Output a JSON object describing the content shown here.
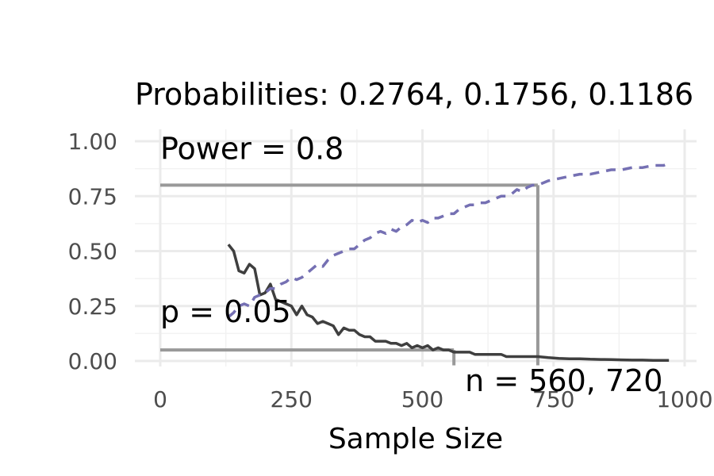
{
  "chart_data": {
    "type": "line",
    "title": "Probabilities: 0.2764, 0.1756, 0.1186",
    "xlabel": "Sample Size",
    "ylabel": "",
    "xlim": [
      0,
      1000
    ],
    "ylim": [
      0,
      1
    ],
    "x_ticks": [
      "0",
      "250",
      "500",
      "750",
      "1000"
    ],
    "y_ticks": [
      "0.00",
      "0.25",
      "0.50",
      "0.75",
      "1.00"
    ],
    "grid": true,
    "series": [
      {
        "color": "#3f3f3f",
        "style": "solid",
        "x": [
          130,
          140,
          150,
          160,
          170,
          180,
          190,
          200,
          210,
          220,
          230,
          240,
          250,
          260,
          270,
          280,
          290,
          300,
          310,
          320,
          330,
          340,
          350,
          360,
          370,
          380,
          390,
          400,
          410,
          420,
          430,
          440,
          450,
          460,
          470,
          480,
          490,
          500,
          510,
          520,
          530,
          540,
          550,
          560,
          570,
          580,
          590,
          600,
          610,
          620,
          630,
          640,
          650,
          660,
          670,
          680,
          690,
          700,
          710,
          720,
          740,
          760,
          780,
          800,
          820,
          840,
          860,
          880,
          900,
          920,
          940,
          960,
          970
        ],
        "values": [
          0.53,
          0.5,
          0.41,
          0.4,
          0.44,
          0.42,
          0.3,
          0.31,
          0.35,
          0.28,
          0.27,
          0.26,
          0.25,
          0.21,
          0.25,
          0.21,
          0.2,
          0.17,
          0.18,
          0.17,
          0.16,
          0.12,
          0.15,
          0.14,
          0.14,
          0.12,
          0.11,
          0.11,
          0.09,
          0.09,
          0.09,
          0.08,
          0.08,
          0.07,
          0.08,
          0.06,
          0.07,
          0.06,
          0.07,
          0.05,
          0.06,
          0.05,
          0.05,
          0.04,
          0.04,
          0.04,
          0.04,
          0.03,
          0.03,
          0.03,
          0.03,
          0.03,
          0.03,
          0.02,
          0.02,
          0.02,
          0.02,
          0.02,
          0.02,
          0.02,
          0.015,
          0.012,
          0.01,
          0.01,
          0.008,
          0.007,
          0.006,
          0.005,
          0.004,
          0.004,
          0.003,
          0.003,
          0.003
        ]
      },
      {
        "color": "#7570b3",
        "style": "dashed",
        "x": [
          130,
          140,
          150,
          160,
          170,
          180,
          190,
          200,
          210,
          220,
          230,
          240,
          250,
          260,
          270,
          280,
          290,
          300,
          310,
          320,
          330,
          340,
          350,
          360,
          370,
          380,
          390,
          400,
          410,
          420,
          430,
          440,
          450,
          460,
          470,
          480,
          490,
          500,
          510,
          520,
          530,
          540,
          550,
          560,
          570,
          580,
          590,
          600,
          610,
          620,
          630,
          640,
          650,
          660,
          670,
          680,
          690,
          700,
          710,
          720,
          740,
          760,
          780,
          800,
          820,
          840,
          860,
          880,
          900,
          920,
          940,
          960,
          970
        ],
        "values": [
          0.2,
          0.22,
          0.25,
          0.26,
          0.25,
          0.29,
          0.3,
          0.31,
          0.33,
          0.33,
          0.35,
          0.36,
          0.38,
          0.37,
          0.38,
          0.4,
          0.42,
          0.44,
          0.43,
          0.46,
          0.48,
          0.49,
          0.5,
          0.51,
          0.51,
          0.53,
          0.55,
          0.56,
          0.58,
          0.59,
          0.58,
          0.6,
          0.59,
          0.61,
          0.62,
          0.64,
          0.63,
          0.64,
          0.63,
          0.65,
          0.65,
          0.66,
          0.67,
          0.67,
          0.69,
          0.7,
          0.71,
          0.71,
          0.72,
          0.72,
          0.73,
          0.74,
          0.75,
          0.75,
          0.76,
          0.78,
          0.77,
          0.79,
          0.8,
          0.8,
          0.82,
          0.83,
          0.84,
          0.85,
          0.85,
          0.86,
          0.87,
          0.87,
          0.88,
          0.88,
          0.89,
          0.89,
          0.9
        ]
      }
    ],
    "annotations": {
      "power_label": "Power = 0.8",
      "power_level": 0.8,
      "power_n": 720,
      "p_label": "p = 0.05",
      "p_level": 0.05,
      "p_n": 560,
      "n_label": "n = 560, 720",
      "reference_line_color": "#999999"
    }
  }
}
